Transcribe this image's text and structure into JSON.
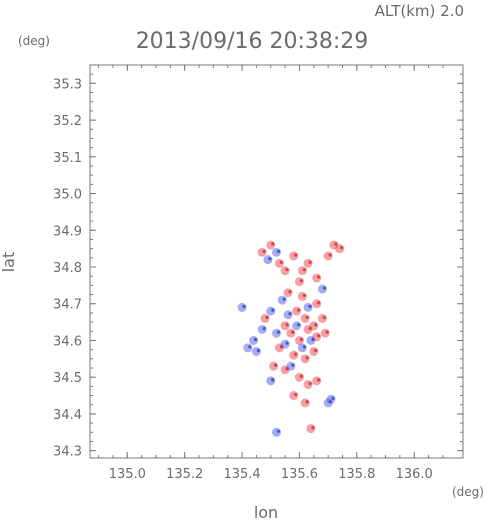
{
  "chart_data": {
    "type": "scatter",
    "title": "2013/09/16 20:38:29",
    "altitude_label": "ALT(km) 2.0",
    "xlabel": "lon",
    "ylabel": "lat",
    "x_unit": "(deg)",
    "y_unit": "(deg)",
    "xlim": [
      134.87,
      136.17
    ],
    "ylim": [
      34.28,
      35.35
    ],
    "x_ticks": [
      "135.0",
      "135.2",
      "135.4",
      "135.6",
      "135.8",
      "136.0"
    ],
    "y_ticks": [
      "34.3",
      "34.4",
      "34.5",
      "34.6",
      "34.7",
      "34.8",
      "34.9",
      "35.0",
      "35.1",
      "35.2",
      "35.3"
    ],
    "grid": false,
    "colors": {
      "positive": "#e0303a",
      "negative": "#3a4ad8",
      "axis": "#7a7a7a",
      "text": "#6b6b6b"
    },
    "series": [
      {
        "polarity": "positive",
        "points": [
          [
            135.47,
            34.84
          ],
          [
            135.5,
            34.86
          ],
          [
            135.53,
            34.81
          ],
          [
            135.55,
            34.79
          ],
          [
            135.58,
            34.83
          ],
          [
            135.61,
            34.79
          ],
          [
            135.63,
            34.81
          ],
          [
            135.6,
            34.76
          ],
          [
            135.66,
            34.77
          ],
          [
            135.72,
            34.86
          ],
          [
            135.74,
            34.85
          ],
          [
            135.7,
            34.83
          ],
          [
            135.56,
            34.73
          ],
          [
            135.59,
            34.68
          ],
          [
            135.62,
            34.66
          ],
          [
            135.65,
            34.64
          ],
          [
            135.68,
            34.66
          ],
          [
            135.55,
            34.64
          ],
          [
            135.57,
            34.62
          ],
          [
            135.6,
            34.6
          ],
          [
            135.63,
            34.63
          ],
          [
            135.66,
            34.61
          ],
          [
            135.69,
            34.62
          ],
          [
            135.53,
            34.58
          ],
          [
            135.58,
            34.56
          ],
          [
            135.62,
            34.55
          ],
          [
            135.65,
            34.57
          ],
          [
            135.51,
            34.53
          ],
          [
            135.55,
            34.52
          ],
          [
            135.6,
            34.5
          ],
          [
            135.63,
            34.48
          ],
          [
            135.66,
            34.49
          ],
          [
            135.58,
            34.45
          ],
          [
            135.62,
            34.43
          ],
          [
            135.64,
            34.36
          ],
          [
            135.66,
            34.7
          ],
          [
            135.61,
            34.72
          ],
          [
            135.48,
            34.66
          ]
        ]
      },
      {
        "polarity": "negative",
        "points": [
          [
            135.49,
            34.82
          ],
          [
            135.52,
            34.84
          ],
          [
            135.54,
            34.71
          ],
          [
            135.5,
            34.68
          ],
          [
            135.56,
            34.67
          ],
          [
            135.59,
            34.64
          ],
          [
            135.47,
            34.63
          ],
          [
            135.44,
            34.6
          ],
          [
            135.52,
            34.62
          ],
          [
            135.55,
            34.59
          ],
          [
            135.61,
            34.58
          ],
          [
            135.64,
            34.6
          ],
          [
            135.57,
            34.53
          ],
          [
            135.5,
            34.49
          ],
          [
            135.45,
            34.57
          ],
          [
            135.4,
            34.69
          ],
          [
            135.42,
            34.58
          ],
          [
            135.7,
            34.43
          ],
          [
            135.71,
            34.44
          ],
          [
            135.52,
            34.35
          ],
          [
            135.68,
            34.74
          ],
          [
            135.63,
            34.69
          ]
        ]
      }
    ]
  }
}
